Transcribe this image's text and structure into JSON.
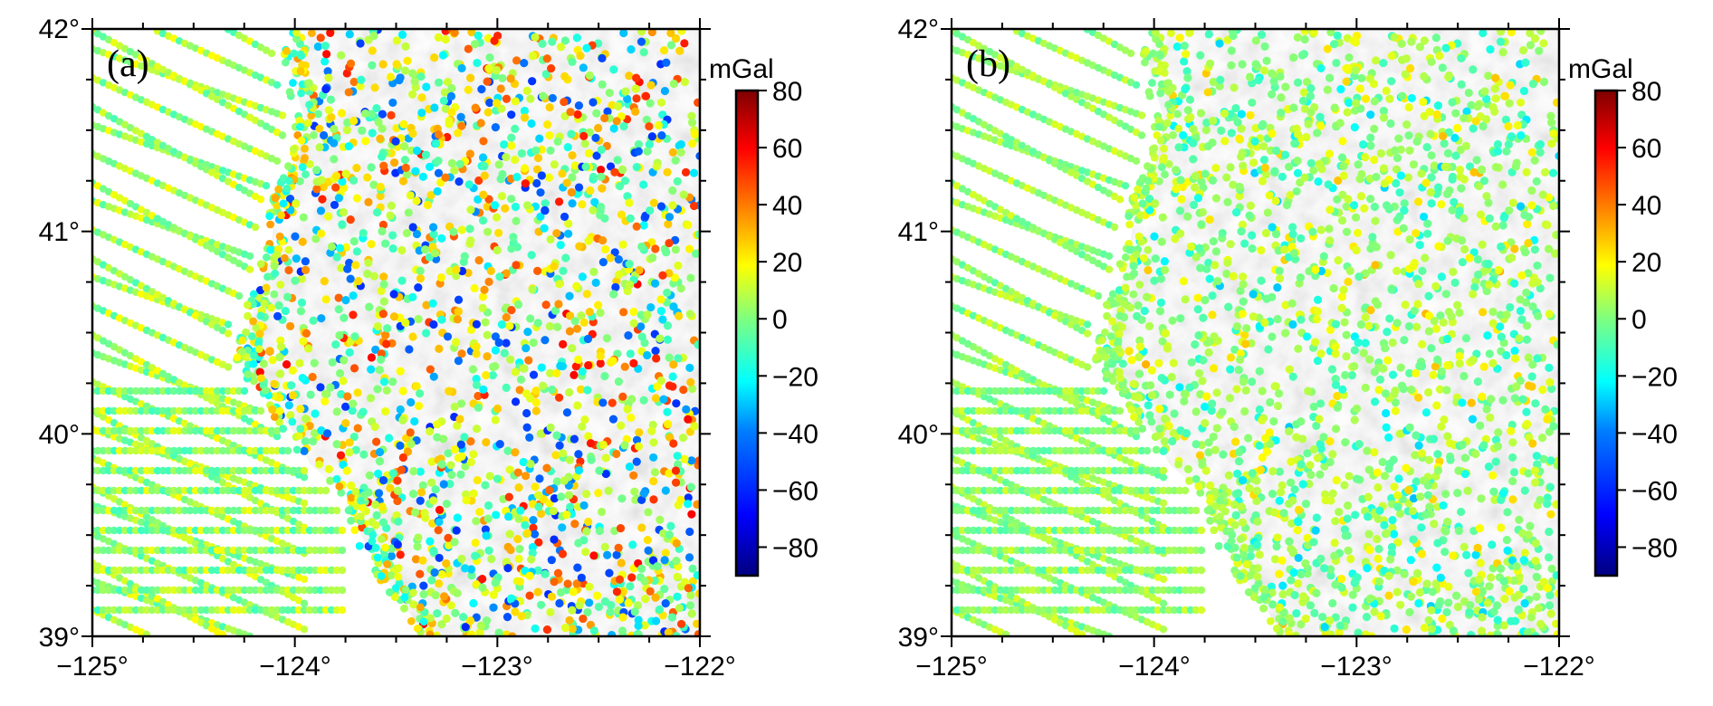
{
  "figure": {
    "panels": [
      {
        "id": "a",
        "label": "(a)",
        "x_ticks": [
          "−125°",
          "−124°",
          "−123°",
          "−122°"
        ],
        "y_ticks": [
          "42°",
          "41°",
          "40°",
          "39°"
        ],
        "colorbar": {
          "unit": "mGal",
          "ticks": [
            "80",
            "60",
            "40",
            "20",
            "0",
            "−20",
            "−40",
            "−60",
            "−80"
          ],
          "range": [
            -90,
            80
          ]
        },
        "anomaly_amplitude": 1.0
      },
      {
        "id": "b",
        "label": "(b)",
        "x_ticks": [
          "−125°",
          "−124°",
          "−123°",
          "−122°"
        ],
        "y_ticks": [
          "42°",
          "41°",
          "40°",
          "39°"
        ],
        "colorbar": {
          "unit": "mGal",
          "ticks": [
            "80",
            "60",
            "40",
            "20",
            "0",
            "−20",
            "−40",
            "−60",
            "−80"
          ],
          "range": [
            -90,
            80
          ]
        },
        "anomaly_amplitude": 0.35
      }
    ],
    "map_extent": {
      "lon": [
        -125,
        -122
      ],
      "lat": [
        39,
        42
      ]
    },
    "colormap": [
      "#00007f",
      "#0000ff",
      "#007fff",
      "#00ffff",
      "#7fff7f",
      "#ffff00",
      "#ff7f00",
      "#ff0000",
      "#7f0000"
    ]
  }
}
